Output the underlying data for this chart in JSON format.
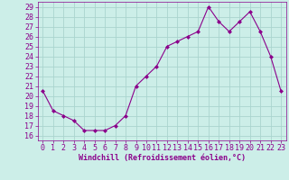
{
  "x": [
    0,
    1,
    2,
    3,
    4,
    5,
    6,
    7,
    8,
    9,
    10,
    11,
    12,
    13,
    14,
    15,
    16,
    17,
    18,
    19,
    20,
    21,
    22,
    23
  ],
  "y": [
    20.5,
    18.5,
    18.0,
    17.5,
    16.5,
    16.5,
    16.5,
    17.0,
    18.0,
    21.0,
    22.0,
    23.0,
    25.0,
    25.5,
    26.0,
    26.5,
    29.0,
    27.5,
    26.5,
    27.5,
    28.5,
    26.5,
    24.0,
    20.5
  ],
  "line_color": "#8B008B",
  "marker": "D",
  "marker_size": 2,
  "bg_color": "#cceee8",
  "grid_color": "#aad4ce",
  "xlabel": "Windchill (Refroidissement éolien,°C)",
  "xlim_min": -0.5,
  "xlim_max": 23.5,
  "ylim_min": 15.5,
  "ylim_max": 29.5,
  "yticks": [
    16,
    17,
    18,
    19,
    20,
    21,
    22,
    23,
    24,
    25,
    26,
    27,
    28,
    29
  ],
  "xticks": [
    0,
    1,
    2,
    3,
    4,
    5,
    6,
    7,
    8,
    9,
    10,
    11,
    12,
    13,
    14,
    15,
    16,
    17,
    18,
    19,
    20,
    21,
    22,
    23
  ],
  "label_fontsize": 6,
  "tick_fontsize": 6
}
